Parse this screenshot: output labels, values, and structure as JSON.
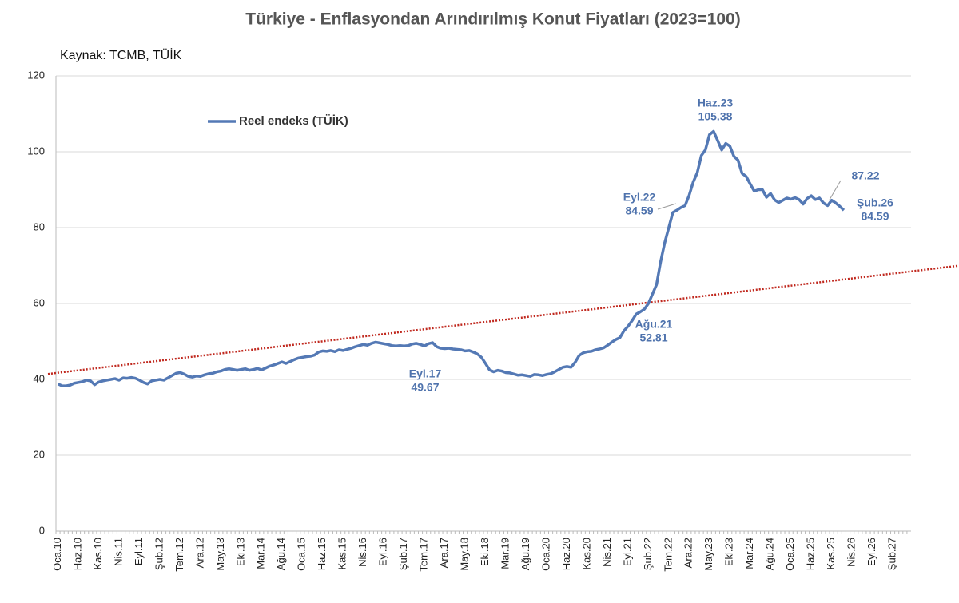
{
  "chart_data": {
    "type": "line",
    "title": "Türkiye - Enflasyondan Arındırılmış Konut Fiyatları (2023=100)",
    "subtitle": "Kaynak: TCMB, TÜİK",
    "categories": [
      "Oca.10",
      null,
      null,
      null,
      null,
      "Haz.10",
      null,
      null,
      null,
      null,
      "Kas.10",
      null,
      null,
      null,
      null,
      "Nis.11",
      null,
      null,
      null,
      null,
      "Eyl.11",
      null,
      null,
      null,
      null,
      "Şub.12",
      null,
      null,
      null,
      null,
      "Tem.12",
      null,
      null,
      null,
      null,
      "Ara.12",
      null,
      null,
      null,
      null,
      "May.13",
      null,
      null,
      null,
      null,
      "Eki.13",
      null,
      null,
      null,
      null,
      "Mar.14",
      null,
      null,
      null,
      null,
      "Ağu.14",
      null,
      null,
      null,
      null,
      "Oca.15",
      null,
      null,
      null,
      null,
      "Haz.15",
      null,
      null,
      null,
      null,
      "Kas.15",
      null,
      null,
      null,
      null,
      "Nis.16",
      null,
      null,
      null,
      null,
      "Eyl.16",
      null,
      null,
      null,
      null,
      "Şub.17",
      null,
      null,
      null,
      null,
      "Tem.17",
      null,
      null,
      null,
      null,
      "Ara.17",
      null,
      null,
      null,
      null,
      "May.18",
      null,
      null,
      null,
      null,
      "Eki.18",
      null,
      null,
      null,
      null,
      "Mar.19",
      null,
      null,
      null,
      null,
      "Ağu.19",
      null,
      null,
      null,
      null,
      "Oca.20",
      null,
      null,
      null,
      null,
      "Haz.20",
      null,
      null,
      null,
      null,
      "Kas.20",
      null,
      null,
      null,
      null,
      "Nis.21",
      null,
      null,
      null,
      null,
      "Eyl.21",
      null,
      null,
      null,
      null,
      "Şub.22",
      null,
      null,
      null,
      null,
      "Tem.22",
      null,
      null,
      null,
      null,
      "Ara.22",
      null,
      null,
      null,
      null,
      "May.23",
      null,
      null,
      null,
      null,
      "Eki.23",
      null,
      null,
      null,
      null,
      "Mar.24",
      null,
      null,
      null,
      null,
      "Ağu.24",
      null,
      null,
      null,
      null,
      "Oca.25",
      null,
      null,
      null,
      null,
      "Haz.25",
      null,
      null,
      null,
      null,
      "Kas.25",
      null,
      null,
      null,
      null,
      "Nis.26",
      null,
      null,
      null,
      null,
      "Eyl.26",
      null,
      null,
      null,
      null,
      "Şub.27",
      null,
      null,
      null,
      null
    ],
    "series": [
      {
        "name": "Reel endeks (TÜİK)",
        "color": "#5479b5",
        "values": [
          38.8,
          38.3,
          38.3,
          38.5,
          39,
          39.2,
          39.4,
          39.8,
          39.6,
          38.6,
          39.3,
          39.6,
          39.8,
          40,
          40.2,
          39.8,
          40.4,
          40.3,
          40.5,
          40.3,
          39.8,
          39.2,
          38.8,
          39.6,
          39.8,
          40,
          39.8,
          40.4,
          41,
          41.6,
          41.8,
          41.4,
          40.8,
          40.6,
          40.9,
          40.8,
          41.2,
          41.5,
          41.6,
          42,
          42.2,
          42.6,
          42.8,
          42.6,
          42.4,
          42.6,
          42.8,
          42.4,
          42.6,
          42.9,
          42.5,
          43,
          43.5,
          43.8,
          44.2,
          44.6,
          44.2,
          44.7,
          45.2,
          45.6,
          45.8,
          46,
          46.1,
          46.4,
          47.2,
          47.5,
          47.4,
          47.6,
          47.3,
          47.8,
          47.6,
          47.9,
          48.2,
          48.6,
          48.9,
          49.2,
          49,
          49.5,
          49.8,
          49.6,
          49.4,
          49.2,
          48.9,
          48.8,
          48.9,
          48.8,
          48.9,
          49.3,
          49.5,
          49.2,
          48.8,
          49.4,
          49.67,
          48.6,
          48.2,
          48.1,
          48.2,
          48,
          47.9,
          47.8,
          47.5,
          47.6,
          47.2,
          46.7,
          45.8,
          44.2,
          42.5,
          42,
          42.4,
          42.2,
          41.8,
          41.7,
          41.4,
          41.1,
          41.2,
          41,
          40.8,
          41.3,
          41.2,
          41,
          41.3,
          41.5,
          42,
          42.6,
          43.2,
          43.4,
          43.2,
          44.5,
          46.3,
          47,
          47.3,
          47.4,
          47.8,
          48,
          48.3,
          49,
          49.8,
          50.5,
          51,
          52.81,
          54,
          55.5,
          57.2,
          57.8,
          58.5,
          60,
          62.5,
          65,
          71,
          76,
          80,
          84,
          84.59,
          85.3,
          85.8,
          88.5,
          92,
          94.5,
          99,
          100.5,
          104.5,
          105.38,
          103,
          100.5,
          102.2,
          101.5,
          98.8,
          97.8,
          94.3,
          93.5,
          91.5,
          89.6,
          90,
          90,
          88,
          89,
          87.3,
          86.6,
          87.2,
          87.8,
          87.5,
          87.9,
          87.4,
          86.2,
          87.7,
          88.4,
          87.4,
          87.8,
          86.5,
          85.8,
          87.22,
          86.5,
          85.6,
          84.59,
          null,
          null,
          null,
          null,
          null,
          null,
          null,
          null,
          null,
          null,
          null,
          null,
          null,
          null,
          null,
          null
        ]
      }
    ],
    "trend": {
      "color": "#c0281e",
      "values": [
        41.75,
        68.4
      ]
    },
    "annotations": [
      {
        "label": "Haz.23",
        "value": 105.38
      },
      {
        "label": "Eyl.22",
        "value": 84.59
      },
      {
        "label": "Ağu.21",
        "value": 52.81
      },
      {
        "label": "Eyl.17",
        "value": 49.67
      },
      {
        "value": 87.22
      },
      {
        "label": "Şub.26",
        "value": 84.59
      }
    ],
    "ylim": [
      0,
      120
    ],
    "yticks": [
      0,
      20,
      40,
      60,
      80,
      100,
      120
    ],
    "grid": true,
    "legend": "top-left"
  }
}
